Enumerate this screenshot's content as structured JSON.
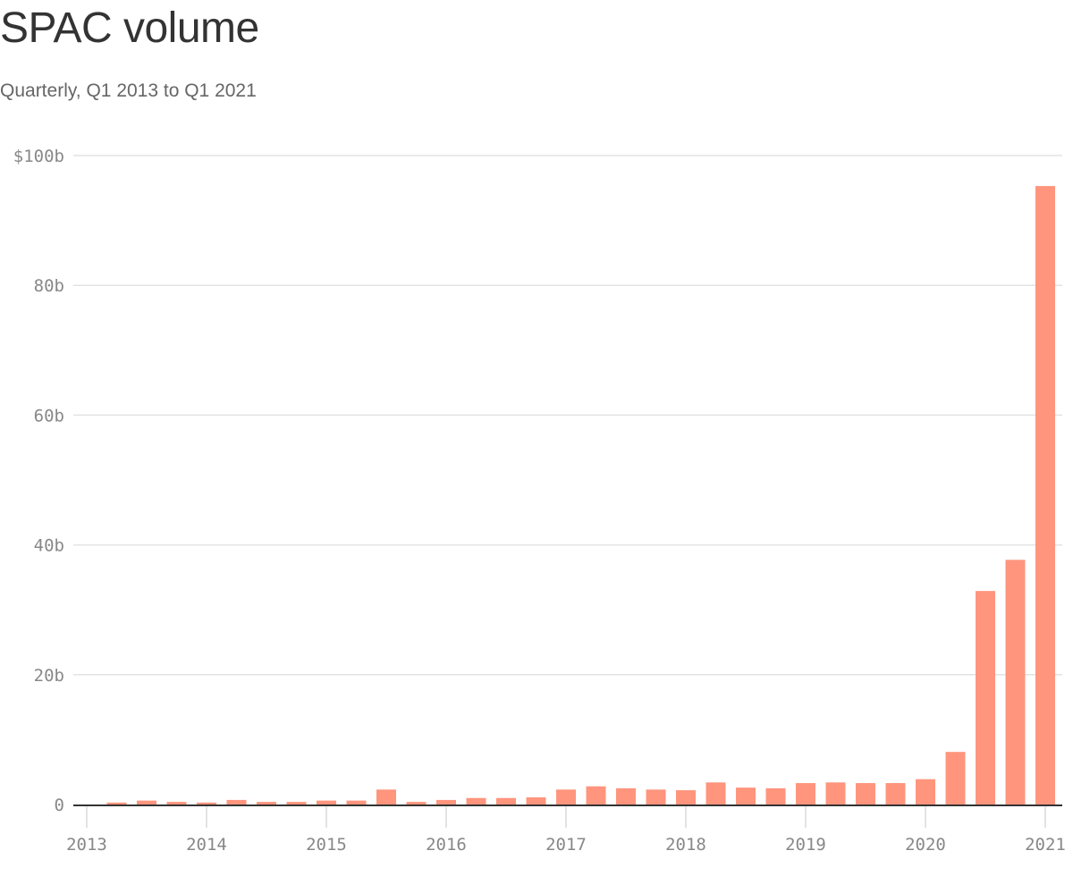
{
  "header": {
    "title": "SPAC volume",
    "subtitle": "Quarterly, Q1 2013 to Q1 2021"
  },
  "colors": {
    "bar": "#FF957D",
    "grid": "#E3E3E3",
    "baseline": "#333333",
    "axis_text": "#888888",
    "title": "#333333",
    "subtitle": "#666666"
  },
  "chart_data": {
    "type": "bar",
    "title": "SPAC volume",
    "subtitle": "Quarterly, Q1 2013 to Q1 2021",
    "xlabel": "",
    "ylabel": "",
    "unit": "$ billions",
    "ylim": [
      0,
      100
    ],
    "yticks": [
      0,
      20,
      40,
      60,
      80,
      100
    ],
    "ytick_labels": [
      "0",
      "20b",
      "40b",
      "60b",
      "80b",
      "$100b"
    ],
    "xticks": [
      "2013",
      "2014",
      "2015",
      "2016",
      "2017",
      "2018",
      "2019",
      "2020",
      "2021"
    ],
    "grid": true,
    "legend": "none",
    "categories": [
      "Q1 2013",
      "Q2 2013",
      "Q3 2013",
      "Q4 2013",
      "Q1 2014",
      "Q2 2014",
      "Q3 2014",
      "Q4 2014",
      "Q1 2015",
      "Q2 2015",
      "Q3 2015",
      "Q4 2015",
      "Q1 2016",
      "Q2 2016",
      "Q3 2016",
      "Q4 2016",
      "Q1 2017",
      "Q2 2017",
      "Q3 2017",
      "Q4 2017",
      "Q1 2018",
      "Q2 2018",
      "Q3 2018",
      "Q4 2018",
      "Q1 2019",
      "Q2 2019",
      "Q3 2019",
      "Q4 2019",
      "Q1 2020",
      "Q2 2020",
      "Q3 2020",
      "Q4 2020",
      "Q1 2021"
    ],
    "values": [
      0.0,
      0.3,
      0.6,
      0.4,
      0.3,
      0.7,
      0.4,
      0.4,
      0.6,
      0.6,
      2.3,
      0.4,
      0.7,
      1.0,
      1.0,
      1.1,
      2.3,
      2.8,
      2.5,
      2.3,
      2.2,
      3.4,
      2.6,
      2.5,
      3.3,
      3.4,
      3.3,
      3.3,
      3.9,
      8.1,
      32.9,
      37.7,
      95.3
    ]
  }
}
